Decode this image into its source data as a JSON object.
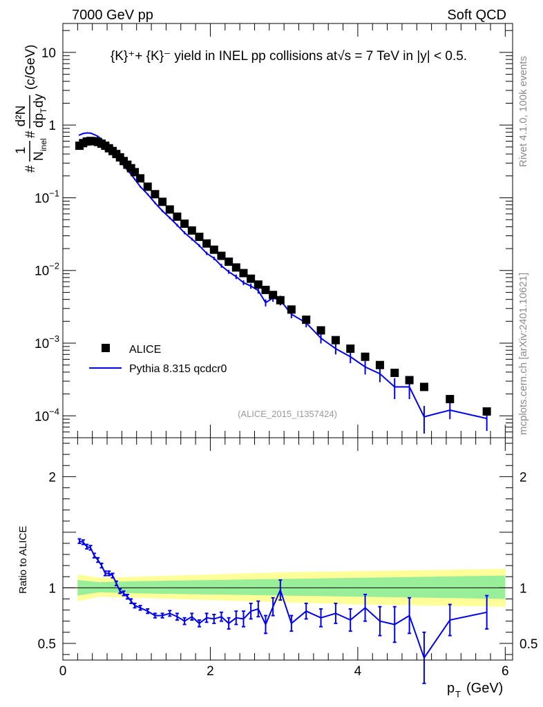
{
  "header": {
    "left": "7000 GeV pp",
    "right": "Soft QCD"
  },
  "sidebar": {
    "rivet": "Rivet 4.1.0,  100k events",
    "source": "mcplots.cern.ch [arXiv:2401.10621]"
  },
  "chart_data": [
    {
      "type": "scatter",
      "title": "{K}⁺+ {K}⁻ yield in INEL pp collisions at√s =  7 TeV in |y| < 0.5.",
      "analysis_id": "(ALICE_2015_I1357424)",
      "xlabel": "p_T (GeV)",
      "ylabel": "#1/N_inel #d²N/dp_T dy (c/GeV)",
      "ylabel_parts": {
        "hash1": "#",
        "one": "1",
        "n": "N",
        "n_sub": "inel",
        "hash2": "#",
        "d2n": "d²N",
        "dpt": "dp",
        "dpt_sub": "T",
        "dy": "dy",
        "units": "(c/GeV)"
      },
      "xlabel_parts": {
        "p": "p",
        "sub": "T",
        "units": "(GeV)"
      },
      "xlim": [
        0,
        6.1
      ],
      "ylim": [
        5e-05,
        25
      ],
      "yscale": "log",
      "x_ticks": [
        "0",
        "2",
        "4",
        "6"
      ],
      "y_ticks": [
        {
          "value": 10,
          "base": "10",
          "exp": ""
        },
        {
          "value": 1,
          "base": "1",
          "exp": ""
        },
        {
          "value": 0.1,
          "base": "10",
          "exp": "−1"
        },
        {
          "value": 0.01,
          "base": "10",
          "exp": "−2"
        },
        {
          "value": 0.001,
          "base": "10",
          "exp": "−3"
        },
        {
          "value": 0.0001,
          "base": "10",
          "exp": "−4"
        }
      ],
      "legend": [
        {
          "name": "ALICE",
          "marker": "square",
          "color": "#000000"
        },
        {
          "name": "Pythia 8.315 qcdcr0",
          "marker": "line",
          "color": "#0000ee"
        }
      ],
      "legend_position": "lower-left",
      "series": [
        {
          "name": "ALICE",
          "x": [
            0.225,
            0.275,
            0.325,
            0.375,
            0.425,
            0.475,
            0.525,
            0.575,
            0.625,
            0.675,
            0.725,
            0.775,
            0.825,
            0.875,
            0.925,
            0.975,
            1.05,
            1.15,
            1.25,
            1.35,
            1.45,
            1.55,
            1.65,
            1.75,
            1.85,
            1.95,
            2.05,
            2.15,
            2.25,
            2.35,
            2.45,
            2.55,
            2.65,
            2.75,
            2.85,
            2.95,
            3.1,
            3.3,
            3.5,
            3.7,
            3.9,
            4.1,
            4.3,
            4.5,
            4.7,
            4.9,
            5.25,
            5.75
          ],
          "values": [
            0.52,
            0.565,
            0.595,
            0.605,
            0.6,
            0.585,
            0.555,
            0.52,
            0.48,
            0.44,
            0.4,
            0.36,
            0.32,
            0.285,
            0.255,
            0.225,
            0.185,
            0.142,
            0.112,
            0.088,
            0.069,
            0.055,
            0.044,
            0.0355,
            0.029,
            0.0235,
            0.0193,
            0.0159,
            0.0132,
            0.011,
            0.0092,
            0.0077,
            0.0064,
            0.0054,
            0.0046,
            0.0039,
            0.0029,
            0.0021,
            0.0015,
            0.0011,
            0.00084,
            0.00065,
            0.0005,
            0.00039,
            0.00031,
            0.00025,
            0.00017,
            0.000115
          ]
        },
        {
          "name": "Pythia 8.315 qcdcr0",
          "x": [
            0.225,
            0.275,
            0.325,
            0.375,
            0.425,
            0.475,
            0.525,
            0.575,
            0.625,
            0.675,
            0.725,
            0.775,
            0.825,
            0.875,
            0.925,
            0.975,
            1.05,
            1.15,
            1.25,
            1.35,
            1.45,
            1.55,
            1.65,
            1.75,
            1.85,
            1.95,
            2.05,
            2.15,
            2.25,
            2.35,
            2.45,
            2.55,
            2.65,
            2.75,
            2.85,
            2.95,
            3.1,
            3.3,
            3.5,
            3.7,
            3.9,
            4.1,
            4.3,
            4.5,
            4.7,
            4.9,
            5.25,
            5.75
          ],
          "values": [
            0.73,
            0.765,
            0.78,
            0.775,
            0.74,
            0.7,
            0.64,
            0.56,
            0.5,
            0.43,
            0.37,
            0.32,
            0.28,
            0.24,
            0.21,
            0.18,
            0.142,
            0.112,
            0.085,
            0.066,
            0.053,
            0.042,
            0.033,
            0.027,
            0.022,
            0.0172,
            0.0147,
            0.0116,
            0.0096,
            0.0082,
            0.0068,
            0.0061,
            0.0053,
            0.0036,
            0.0042,
            0.0039,
            0.0025,
            0.0019,
            0.00117,
            0.00084,
            0.00065,
            0.00047,
            0.00038,
            0.00025,
            0.00025,
            9.7e-05,
            0.00012,
            9.2e-05
          ],
          "errors": [
            0.015,
            0.015,
            0.015,
            0.015,
            0.015,
            0.014,
            0.013,
            0.012,
            0.011,
            0.01,
            0.009,
            0.008,
            0.007,
            0.006,
            0.006,
            0.005,
            0.004,
            0.0035,
            0.003,
            0.0025,
            0.002,
            0.0018,
            0.0015,
            0.0012,
            0.001,
            0.0009,
            0.0008,
            0.0007,
            0.0006,
            0.0006,
            0.0005,
            0.0005,
            0.0005,
            0.0004,
            0.0005,
            0.0006,
            0.0003,
            0.00025,
            0.00018,
            0.00014,
            0.00012,
            0.0001,
            9e-05,
            8e-05,
            8e-05,
            4e-05,
            3e-05,
            3e-05
          ]
        }
      ]
    },
    {
      "type": "line",
      "ylabel": "Ratio to ALICE",
      "xlim": [
        0,
        6.1
      ],
      "ylim": [
        0.35,
        2.35
      ],
      "x_ticks": [
        "0",
        "2",
        "4",
        "6"
      ],
      "y_ticks": [
        "0.5",
        "1",
        "2"
      ],
      "reference_line": 1,
      "bands": {
        "x": [
          0.2,
          0.5,
          1.0,
          1.5,
          2.0,
          2.5,
          3.0,
          3.5,
          4.0,
          4.5,
          5.0,
          5.5,
          6.0
        ],
        "stat_syst_lower": [
          0.93,
          0.96,
          0.95,
          0.945,
          0.94,
          0.935,
          0.93,
          0.925,
          0.92,
          0.915,
          0.91,
          0.905,
          0.9
        ],
        "stat_syst_upper": [
          1.07,
          1.05,
          1.06,
          1.065,
          1.07,
          1.075,
          1.08,
          1.085,
          1.09,
          1.095,
          1.1,
          1.105,
          1.11
        ],
        "total_lower": [
          0.88,
          0.92,
          0.91,
          0.9,
          0.89,
          0.88,
          0.87,
          0.86,
          0.85,
          0.845,
          0.84,
          0.835,
          0.83
        ],
        "total_upper": [
          1.12,
          1.09,
          1.1,
          1.11,
          1.12,
          1.13,
          1.14,
          1.145,
          1.15,
          1.155,
          1.16,
          1.165,
          1.17
        ]
      },
      "series": [
        {
          "name": "Pythia 8.315 qcdcr0 / ALICE",
          "x": [
            0.225,
            0.275,
            0.325,
            0.375,
            0.425,
            0.475,
            0.525,
            0.575,
            0.625,
            0.675,
            0.725,
            0.775,
            0.825,
            0.875,
            0.925,
            0.975,
            1.05,
            1.15,
            1.25,
            1.35,
            1.45,
            1.55,
            1.65,
            1.75,
            1.85,
            1.95,
            2.05,
            2.15,
            2.25,
            2.35,
            2.45,
            2.55,
            2.65,
            2.75,
            2.85,
            2.95,
            3.1,
            3.3,
            3.5,
            3.7,
            3.9,
            4.1,
            4.3,
            4.5,
            4.7,
            4.9,
            5.25,
            5.75
          ],
          "values": [
            1.42,
            1.41,
            1.37,
            1.36,
            1.29,
            1.25,
            1.2,
            1.13,
            1.13,
            1.11,
            1.04,
            0.97,
            0.95,
            0.92,
            0.88,
            0.84,
            0.82,
            0.79,
            0.75,
            0.75,
            0.77,
            0.74,
            0.7,
            0.74,
            0.68,
            0.73,
            0.72,
            0.74,
            0.68,
            0.73,
            0.72,
            0.79,
            0.81,
            0.67,
            0.83,
            0.98,
            0.68,
            0.79,
            0.73,
            0.77,
            0.71,
            0.82,
            0.7,
            0.67,
            0.75,
            0.37,
            0.71,
            0.78
          ],
          "errors": [
            0.02,
            0.02,
            0.02,
            0.02,
            0.02,
            0.02,
            0.02,
            0.02,
            0.02,
            0.02,
            0.02,
            0.02,
            0.02,
            0.02,
            0.02,
            0.02,
            0.02,
            0.02,
            0.02,
            0.02,
            0.025,
            0.03,
            0.03,
            0.03,
            0.03,
            0.04,
            0.04,
            0.04,
            0.05,
            0.06,
            0.07,
            0.07,
            0.07,
            0.08,
            0.08,
            0.09,
            0.07,
            0.07,
            0.08,
            0.09,
            0.1,
            0.12,
            0.13,
            0.16,
            0.16,
            0.23,
            0.14,
            0.15
          ]
        }
      ]
    }
  ]
}
